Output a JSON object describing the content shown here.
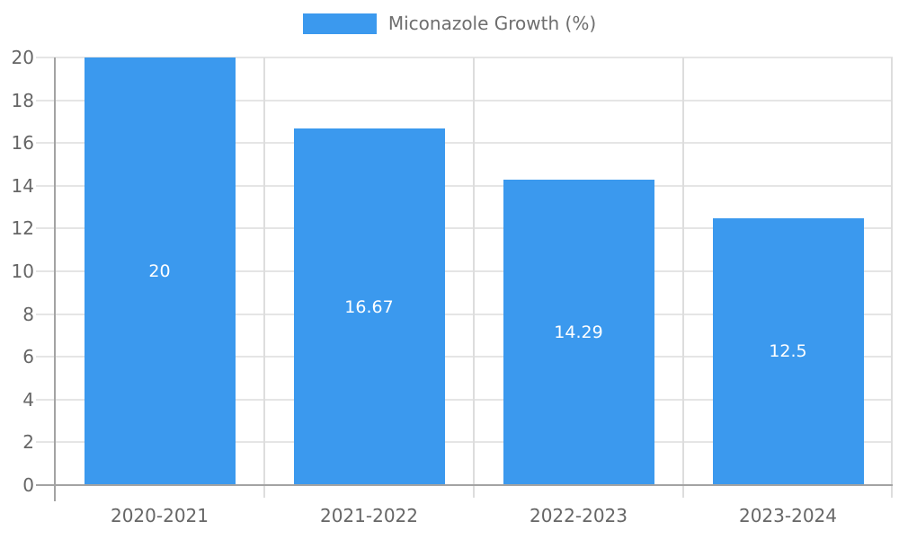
{
  "chart_data": {
    "type": "bar",
    "title": "",
    "legend": {
      "label": "Miconazole Growth (%)",
      "position": "top-center"
    },
    "categories": [
      "2020-2021",
      "2021-2022",
      "2022-2023",
      "2023-2024"
    ],
    "values": [
      20,
      16.67,
      14.29,
      12.5
    ],
    "value_labels": [
      "20",
      "16.67",
      "14.29",
      "12.5"
    ],
    "xlabel": "",
    "ylabel": "",
    "ylim": [
      0,
      20
    ],
    "yticks": [
      0,
      2,
      4,
      6,
      8,
      10,
      12,
      14,
      16,
      18,
      20
    ],
    "grid": true,
    "colors": {
      "bar": "#3B99EE",
      "axis": "#A3A3A3",
      "gridline_h": "#E5E5E5",
      "gridline_v": "#DDDDDD",
      "tick_label": "#666666",
      "bar_value_label": "#FFFFFF",
      "legend_text": "#6E6E6E"
    }
  }
}
